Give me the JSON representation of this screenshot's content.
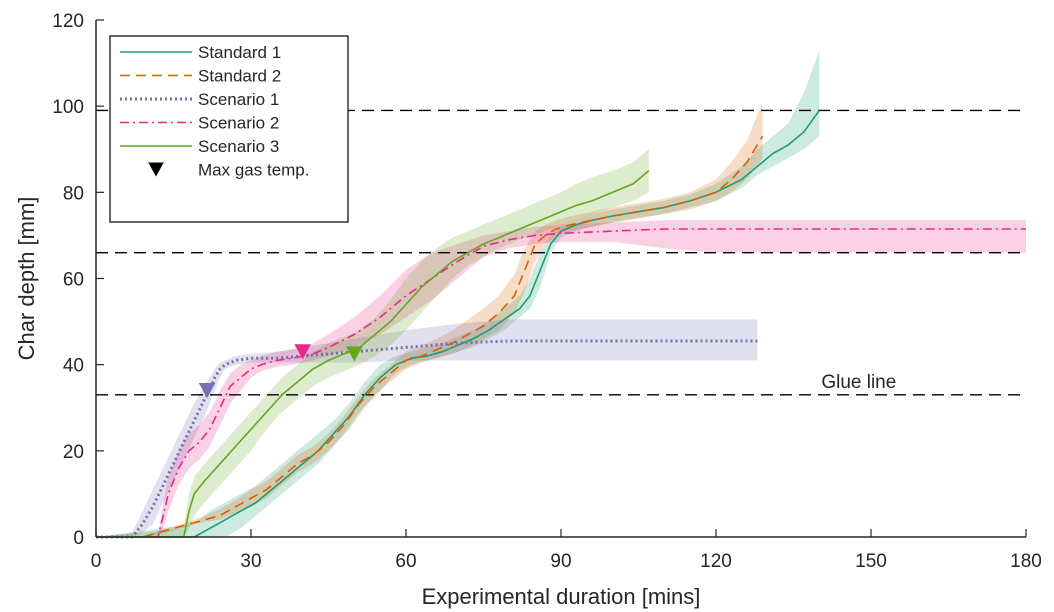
{
  "chart_data": {
    "type": "line",
    "title": "",
    "xlabel": "Experimental duration [mins]",
    "ylabel": "Char depth [mm]",
    "xlim": [
      0,
      180
    ],
    "ylim": [
      0,
      120
    ],
    "xticks": [
      0,
      30,
      60,
      90,
      120,
      150,
      180
    ],
    "yticks": [
      0,
      20,
      40,
      60,
      80,
      100,
      120
    ],
    "grid": false,
    "legend_position": "top-left",
    "reference_lines": [
      {
        "y": 99,
        "style": "dashed",
        "color": "#000000",
        "label": ""
      },
      {
        "y": 66,
        "style": "dashed",
        "color": "#000000",
        "label": ""
      },
      {
        "y": 33,
        "style": "dashed",
        "color": "#000000",
        "label": "Glue line"
      }
    ],
    "annotations": [
      {
        "text": "Glue line",
        "x": 140,
        "y": 35
      }
    ],
    "series": [
      {
        "name": "Standard 1",
        "color": "#1b9e77",
        "dash": "solid",
        "x": [
          0,
          19,
          22,
          25,
          28,
          31,
          34,
          37,
          40,
          43,
          46,
          49,
          52,
          55,
          58,
          61,
          64,
          67,
          70,
          73,
          76,
          79,
          82,
          84,
          86,
          88,
          90,
          93,
          96,
          100,
          105,
          110,
          115,
          120,
          125,
          128,
          131,
          134,
          137,
          140
        ],
        "y": [
          0,
          0,
          2,
          4,
          6,
          8,
          11,
          14,
          17,
          20,
          24,
          28,
          33,
          37,
          40,
          41.5,
          42,
          43,
          44.5,
          46,
          48,
          50.5,
          53,
          56,
          62,
          68,
          71,
          72.5,
          73.5,
          74.5,
          75.5,
          76.5,
          78,
          80,
          83,
          86,
          89,
          91,
          94,
          99
        ],
        "band_upper": [
          0,
          3,
          6,
          8,
          10,
          12,
          15,
          18,
          21,
          24,
          27,
          31,
          36,
          40,
          42,
          43,
          44,
          45,
          46.5,
          48,
          50,
          53,
          56,
          60,
          66,
          70,
          72.5,
          74,
          75,
          76,
          77,
          78,
          79.5,
          82,
          86,
          90,
          93,
          96,
          103,
          113
        ],
        "band_lower": [
          0,
          0,
          0,
          0,
          2,
          5,
          8,
          11,
          14,
          17,
          21,
          25,
          30,
          34,
          38,
          40,
          41,
          42,
          43,
          44,
          46,
          48,
          51,
          53,
          58,
          66,
          69.5,
          71,
          72,
          73,
          74,
          75,
          76.5,
          78,
          81,
          84,
          86,
          88,
          90,
          93
        ]
      },
      {
        "name": "Standard 2",
        "color": "#d95f02",
        "dash": "dashed",
        "x": [
          0,
          9,
          12,
          15,
          18,
          21,
          24,
          27,
          30,
          33,
          36,
          39,
          42,
          45,
          48,
          51,
          54,
          57,
          60,
          63,
          66,
          69,
          72,
          75,
          78,
          81,
          83,
          85,
          87,
          89,
          92,
          96,
          100,
          105,
          110,
          115,
          120,
          123,
          126,
          129
        ],
        "y": [
          0,
          0,
          1,
          2,
          3,
          4,
          5,
          7,
          9,
          11,
          14,
          17,
          19,
          22,
          26,
          31,
          35,
          38,
          41,
          42,
          43.5,
          45,
          47,
          49,
          52,
          56,
          62,
          68,
          70,
          71.5,
          72.5,
          73.5,
          74.5,
          75.5,
          76.5,
          78,
          80,
          83,
          87,
          93
        ],
        "band_upper": [
          0,
          0,
          1.5,
          2.5,
          3.5,
          5,
          6.5,
          8.5,
          11,
          13,
          16,
          19,
          21,
          24,
          28,
          33,
          37,
          40,
          43,
          44.5,
          46,
          48,
          50.5,
          53,
          56,
          61,
          67,
          71,
          72.5,
          73.5,
          74.5,
          75.5,
          76.5,
          77.5,
          78.5,
          80,
          83,
          87,
          92,
          101
        ],
        "band_lower": [
          0,
          0,
          0.5,
          1.5,
          2.5,
          3.5,
          4,
          5.5,
          7,
          9,
          12,
          15,
          17,
          20,
          24,
          29,
          33,
          36,
          39,
          40.5,
          41.5,
          42.5,
          44,
          46,
          48,
          52,
          57,
          64,
          68,
          70,
          71,
          72,
          73,
          74,
          75,
          76,
          78,
          80,
          83,
          88
        ]
      },
      {
        "name": "Scenario 1",
        "color": "#7570b3",
        "dash": "dotted",
        "x": [
          0,
          7,
          9,
          11,
          13,
          15,
          17,
          19,
          21,
          22,
          23,
          24,
          25,
          27,
          30,
          35,
          40,
          50,
          60,
          70,
          80,
          90,
          100,
          110,
          120,
          128
        ],
        "y": [
          0,
          0,
          3,
          7,
          12,
          17,
          22,
          27,
          32,
          34,
          37,
          39,
          40,
          41,
          41.5,
          41.5,
          42,
          43,
          44,
          45,
          45.5,
          45.5,
          45.5,
          45.5,
          45.5,
          45.5
        ],
        "band_upper": [
          0,
          1,
          6,
          11,
          16,
          21,
          26,
          31,
          35,
          37,
          39,
          40.5,
          41,
          42,
          42.5,
          43,
          44,
          46,
          48,
          49.5,
          50.5,
          50.5,
          50.5,
          50.5,
          50.5,
          50.5
        ],
        "band_lower": [
          0,
          0,
          1,
          3,
          8,
          13,
          18,
          23,
          28,
          31,
          34,
          37,
          39,
          40,
          40.5,
          40.5,
          40.5,
          40.5,
          41,
          41,
          41,
          41,
          41,
          41,
          41,
          41
        ]
      },
      {
        "name": "Scenario 2",
        "color": "#e7298a",
        "dash": "dashdot",
        "x": [
          0,
          12,
          13,
          14,
          16,
          18,
          20,
          22,
          24,
          26,
          28,
          30,
          32,
          35,
          38,
          40,
          42,
          45,
          50,
          55,
          60,
          65,
          70,
          75,
          80,
          85,
          90,
          100,
          110,
          115,
          120,
          130,
          140,
          150,
          160,
          170,
          180
        ],
        "y": [
          0,
          0,
          5,
          10,
          16,
          20,
          22,
          25,
          30,
          35,
          37,
          39,
          40,
          41,
          41.5,
          42,
          42.5,
          44,
          47,
          51,
          56,
          60,
          64,
          67.5,
          69,
          70,
          70.5,
          71,
          71.5,
          71.5,
          71.5,
          71.5,
          71.5,
          71.5,
          71.5,
          71.5,
          71.5
        ],
        "band_upper": [
          0,
          0,
          8,
          14,
          20,
          24,
          26,
          29,
          34,
          38,
          40,
          41,
          42,
          43,
          43.5,
          44,
          45,
          47,
          51,
          56,
          62,
          66,
          68,
          70,
          71,
          72,
          72.5,
          73,
          73.5,
          73.5,
          73.5,
          73.5,
          73.5,
          73.5,
          73.5,
          73.5,
          73.5
        ],
        "band_lower": [
          0,
          0,
          2,
          6,
          12,
          16,
          18,
          21,
          26,
          31,
          34,
          37,
          38.5,
          39.5,
          40,
          40.5,
          41,
          42,
          44,
          47,
          51,
          55,
          60,
          65,
          67,
          68,
          68.5,
          68.5,
          67,
          66.5,
          66,
          66,
          66,
          66,
          66,
          66,
          66
        ]
      },
      {
        "name": "Scenario 3",
        "color": "#66a61e",
        "dash": "solid",
        "x": [
          0,
          17,
          18,
          19,
          21,
          24,
          27,
          30,
          33,
          36,
          39,
          42,
          45,
          48,
          51,
          54,
          57,
          60,
          63,
          66,
          69,
          72,
          75,
          78,
          81,
          84,
          87,
          90,
          93,
          96,
          100,
          104,
          107
        ],
        "y": [
          0,
          0,
          6,
          10,
          13,
          17,
          21,
          25,
          29,
          33,
          36,
          39,
          41,
          42.5,
          44,
          47,
          50,
          54,
          58,
          61,
          64,
          66,
          68,
          69.5,
          71,
          72.5,
          74,
          75.5,
          77,
          78,
          80,
          82,
          85
        ],
        "band_upper": [
          0,
          2,
          10,
          14,
          17,
          21,
          25,
          29,
          33,
          37,
          40,
          43,
          45,
          46.5,
          48,
          51,
          55,
          60,
          64,
          67,
          69.5,
          71,
          72.5,
          74,
          75.5,
          77,
          78.5,
          80,
          82,
          83.5,
          85,
          87,
          90
        ],
        "band_lower": [
          0,
          0,
          2,
          5,
          8,
          12,
          16,
          20,
          25,
          29,
          32,
          35,
          37,
          38.5,
          40,
          42,
          44.5,
          48,
          52,
          56,
          60,
          63,
          65,
          67,
          68.5,
          70,
          71,
          72.5,
          74,
          75,
          76.5,
          78,
          80
        ]
      }
    ],
    "markers": {
      "legend_label": "Max gas temp.",
      "legend_color": "#000000",
      "symbol": "down-triangle",
      "points": [
        {
          "series": "Scenario 1",
          "x": 21.5,
          "y": 34,
          "color": "#7570b3"
        },
        {
          "series": "Scenario 2",
          "x": 40,
          "y": 43,
          "color": "#e7298a"
        },
        {
          "series": "Scenario 3",
          "x": 50,
          "y": 42.5,
          "color": "#66a61e"
        }
      ]
    }
  }
}
